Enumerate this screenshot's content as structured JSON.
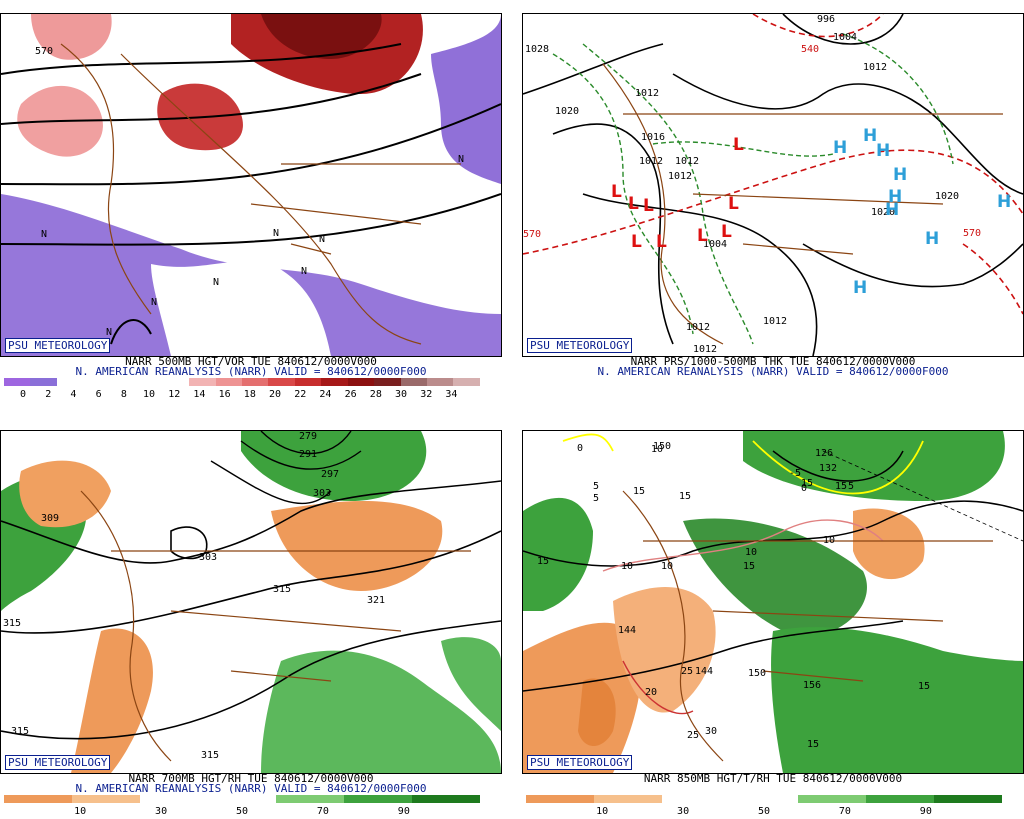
{
  "common": {
    "badge": "PSU METEOROLOGY"
  },
  "panels": [
    {
      "caption_line1": "NARR 500MB HGT/VOR TUE 840612/0000V000",
      "caption_line2": "N. AMERICAN REANALYSIS (NARR) VALID = 840612/0000F000",
      "colorbar_ticks": [
        "0",
        "2",
        "4",
        "6",
        "8",
        "10",
        "12",
        "14",
        "16",
        "18",
        "20",
        "22",
        "24",
        "26",
        "28",
        "30",
        "32",
        "34"
      ],
      "contour_labels": [
        "570",
        "N",
        "N",
        "N",
        "N",
        "N",
        "N",
        "N",
        "N"
      ]
    },
    {
      "caption_line1": "NARR PRS/1000-500MB THK TUE 840612/0000V000",
      "caption_line2": "N. AMERICAN REANALYSIS (NARR) VALID = 840612/0000F000",
      "contour_labels": [
        "1028",
        "1020",
        "996",
        "1004",
        "1012",
        "1012",
        "1016",
        "1012",
        "1012",
        "1012",
        "1004",
        "1020",
        "1020",
        "1012",
        "1012",
        "1012",
        "570",
        "570",
        "540"
      ],
      "highs": [
        "H",
        "H",
        "H",
        "H",
        "H",
        "H",
        "H",
        "H",
        "H"
      ],
      "lows": [
        "L",
        "L",
        "L",
        "L",
        "L",
        "L",
        "L",
        "L",
        "L"
      ]
    },
    {
      "caption_line1": "NARR 700MB HGT/RH TUE 840612/0000V000",
      "caption_line2": "N. AMERICAN REANALYSIS (NARR) VALID = 840612/0000F000",
      "colorbar_ticks": [
        "10",
        "30",
        "50",
        "70",
        "90"
      ],
      "contour_labels": [
        "309",
        "303",
        "303",
        "315",
        "321",
        "315",
        "315",
        "315",
        "279",
        "291",
        "297"
      ]
    },
    {
      "caption_line1": "NARR 850MB HGT/T/RH TUE 840612/0000V000",
      "colorbar_ticks": [
        "10",
        "30",
        "50",
        "70",
        "90"
      ],
      "contour_labels": [
        "150",
        "126",
        "132",
        "15",
        "144",
        "144",
        "150",
        "156",
        "15",
        "-5",
        "0",
        "5",
        "5",
        "10",
        "10",
        "10",
        "10",
        "10",
        "15",
        "15",
        "15",
        "15",
        "20",
        "25",
        "25",
        "30",
        "15",
        "15",
        "0",
        "5"
      ]
    }
  ],
  "colors": {
    "vort_bar": [
      "#9e66e0",
      "#8a6fd8",
      "#ffffff",
      "#ffffff",
      "#ffffff",
      "#ffffff",
      "#ffffff",
      "#f2b3b3",
      "#ee9393",
      "#e46f6f",
      "#d94848",
      "#c72d2d",
      "#a61818",
      "#8c1010",
      "#7a1f1f",
      "#9a6a6a",
      "#bb8c8c",
      "#d6b0b0"
    ],
    "rh_bar": [
      "#ee9a5a",
      "#f6c08c",
      "#ffffff",
      "#ffffff",
      "#7ecb72",
      "#3da23d",
      "#1e7a1e"
    ]
  }
}
